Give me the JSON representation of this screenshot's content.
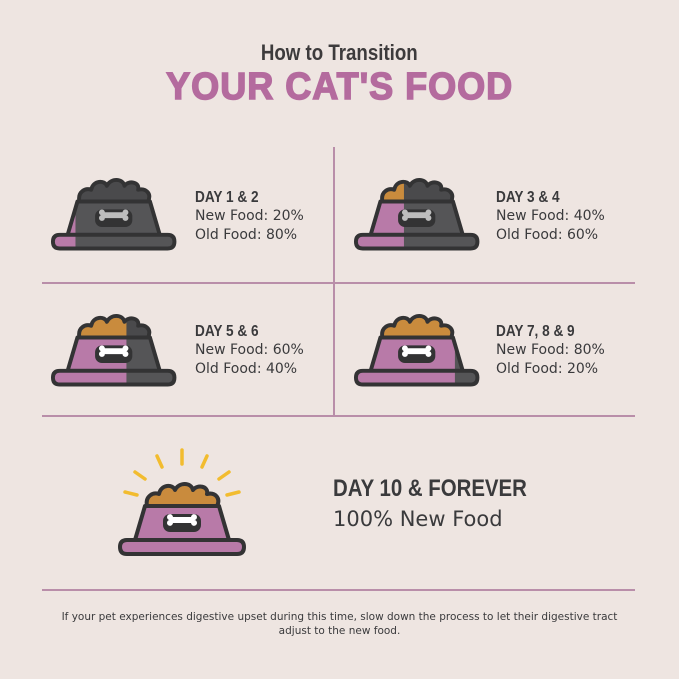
{
  "header": {
    "subtitle": "How to Transition",
    "title": "YOUR CAT'S FOOD"
  },
  "colors": {
    "background": "#eee5e1",
    "pink": "#b87aa8",
    "dark": "#555557",
    "outline": "#333334",
    "food": "#c98b3d",
    "rays": "#f2bc2f",
    "divider": "#b98ea9"
  },
  "steps": [
    {
      "day": "DAY 1 & 2",
      "new": "New Food: 20%",
      "old": "Old Food: 80%",
      "new_fraction": 0.2
    },
    {
      "day": "DAY 3 & 4",
      "new": "New Food: 40%",
      "old": "Old Food: 60%",
      "new_fraction": 0.4
    },
    {
      "day": "DAY 5 & 6",
      "new": "New Food: 60%",
      "old": "Old Food: 40%",
      "new_fraction": 0.6
    },
    {
      "day": "DAY 7, 8 & 9",
      "new": "New Food: 80%",
      "old": "Old Food: 20%",
      "new_fraction": 0.8
    }
  ],
  "final": {
    "day": "DAY 10 & FOREVER",
    "text": "100% New Food",
    "new_fraction": 1.0
  },
  "note": "If your pet experiences digestive upset during this time, slow down the process to let their digestive tract adjust to the new food."
}
